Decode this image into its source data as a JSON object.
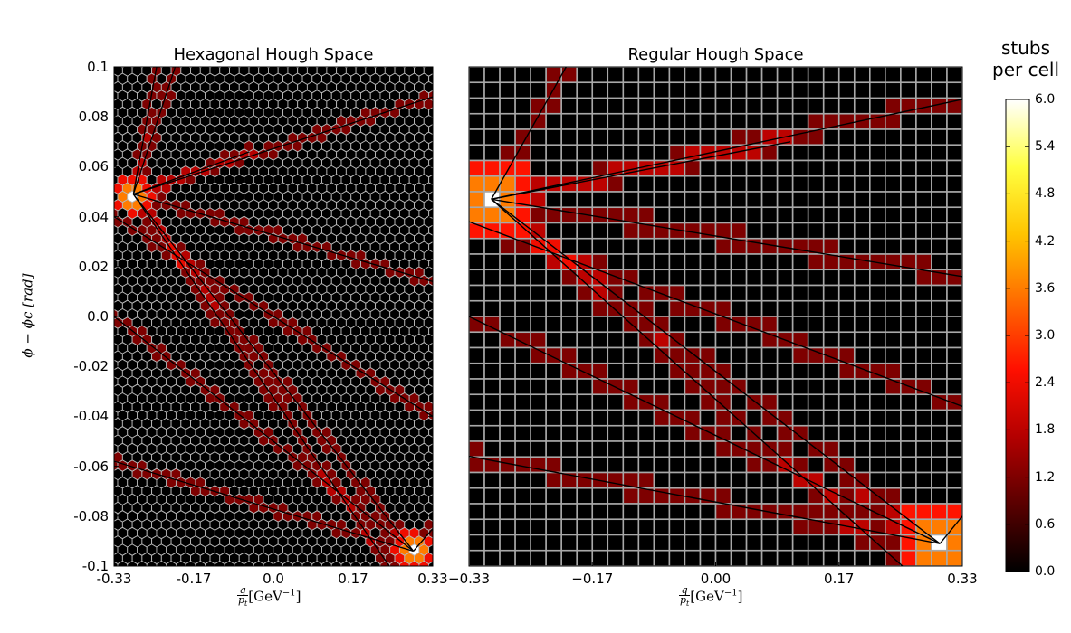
{
  "chart_data": [
    {
      "type": "heatmap",
      "title": "Hexagonal Hough Space",
      "grid": "hexagonal",
      "xlim": [
        -0.33,
        0.33
      ],
      "ylim": [
        -0.1,
        0.1
      ],
      "x_ticks": [
        "-0.33",
        "-0.17",
        "0.0",
        "0.17",
        "0.33"
      ],
      "y_ticks": [
        "0.1",
        "0.08",
        "0.06",
        "0.04",
        "0.02",
        "0.0",
        "-0.02",
        "-0.04",
        "-0.06",
        "-0.08",
        "-0.1"
      ],
      "xlabel_tex": {
        "num": "q",
        "den": "p",
        "den_sub": "t",
        "unit": "[GeV",
        "unit_sup": "−1",
        "unit_close": "]"
      },
      "ylabel": "ϕ − ϕc [rad]",
      "hot_spots": [
        {
          "x": -0.29,
          "y": 0.049,
          "value": 6
        },
        {
          "x": 0.29,
          "y": -0.094,
          "value": 6
        }
      ],
      "tracks": [
        {
          "x0": -0.29,
          "y0": 0.049,
          "x1": -0.24,
          "y1": 0.102
        },
        {
          "x0": -0.29,
          "y0": 0.049,
          "x1": -0.2,
          "y1": 0.102
        },
        {
          "x0": -0.29,
          "y0": 0.049,
          "x1": 0.33,
          "y1": 0.088
        },
        {
          "x0": -0.29,
          "y0": 0.049,
          "x1": -0.05,
          "y1": 0.066
        },
        {
          "x0": -0.29,
          "y0": 0.049,
          "x1": 0.33,
          "y1": 0.014
        },
        {
          "x0": -0.29,
          "y0": 0.049,
          "x1": 0.29,
          "y1": -0.094
        },
        {
          "x0": -0.29,
          "y0": 0.049,
          "x1": 0.24,
          "y1": -0.1
        },
        {
          "x0": -0.33,
          "y0": 0.0,
          "x1": 0.29,
          "y1": -0.094
        },
        {
          "x0": -0.33,
          "y0": -0.058,
          "x1": 0.29,
          "y1": -0.094
        },
        {
          "x0": -0.33,
          "y0": 0.04,
          "x1": 0.33,
          "y1": -0.04
        },
        {
          "x0": 0.29,
          "y0": -0.094,
          "x1": 0.33,
          "y1": -0.085
        }
      ]
    },
    {
      "type": "heatmap",
      "title": "Regular Hough Space",
      "grid": "square",
      "xlim": [
        -0.33,
        0.33
      ],
      "ylim": [
        -0.1,
        0.1
      ],
      "x_ticks": [
        "−0.33",
        "−0.17",
        "0.00",
        "0.17",
        "0.33"
      ],
      "xlabel_tex": {
        "num": "q",
        "den": "p",
        "den_sub": "t",
        "unit": "[GeV",
        "unit_sup": "−1",
        "unit_close": "]"
      },
      "hot_spots": [
        {
          "x": -0.3,
          "y": 0.047,
          "value": 6
        },
        {
          "x": 0.3,
          "y": -0.091,
          "value": 6
        }
      ],
      "tracks": [
        {
          "x0": -0.3,
          "y0": 0.047,
          "x1": -0.2,
          "y1": 0.1
        },
        {
          "x0": -0.3,
          "y0": 0.047,
          "x1": 0.33,
          "y1": 0.087
        },
        {
          "x0": -0.3,
          "y0": 0.047,
          "x1": 0.1,
          "y1": 0.07
        },
        {
          "x0": -0.3,
          "y0": 0.047,
          "x1": 0.33,
          "y1": 0.016
        },
        {
          "x0": -0.3,
          "y0": 0.047,
          "x1": 0.3,
          "y1": -0.091
        },
        {
          "x0": -0.3,
          "y0": 0.047,
          "x1": 0.25,
          "y1": -0.1
        },
        {
          "x0": -0.33,
          "y0": 0.0,
          "x1": 0.3,
          "y1": -0.091
        },
        {
          "x0": -0.33,
          "y0": -0.056,
          "x1": 0.3,
          "y1": -0.091
        },
        {
          "x0": -0.33,
          "y0": 0.038,
          "x1": 0.33,
          "y1": -0.036
        },
        {
          "x0": 0.3,
          "y0": -0.091,
          "x1": 0.33,
          "y1": -0.08
        }
      ]
    }
  ],
  "colorbar": {
    "title_line1": "stubs",
    "title_line2": "per cell",
    "range": [
      0.0,
      6.0
    ],
    "ticks": [
      "6.0",
      "5.4",
      "4.8",
      "4.2",
      "3.6",
      "3.0",
      "2.4",
      "1.8",
      "1.2",
      "0.6",
      "0.0"
    ],
    "colormap": "hot",
    "colors": [
      "#000000",
      "#5a0000",
      "#b40000",
      "#ff1000",
      "#ff6a00",
      "#ffc400",
      "#ffff40",
      "#ffffff"
    ]
  }
}
